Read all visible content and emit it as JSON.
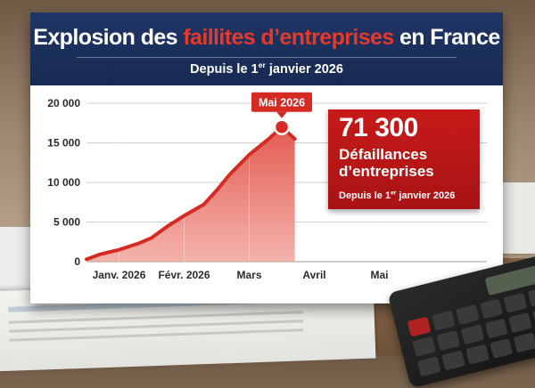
{
  "poster": {
    "title_part1": "Explosion des ",
    "title_highlight": "faillites d’entreprises",
    "title_part2": " en France",
    "subtitle_before": "Depuis le 1",
    "subtitle_sup": "er",
    "subtitle_after": " janvier 2026"
  },
  "callout": {
    "value": "71 300",
    "line1": "Défaillances",
    "line2": "d’entreprises",
    "sub_before": "Depuis le 1",
    "sub_sup": "er",
    "sub_after": " janvier 2026"
  },
  "colors": {
    "header_navy": "#1f3566",
    "accent_red": "#d42a22",
    "callout_red": "#c71a1a",
    "grid": "#cfcfcf"
  },
  "chart_data": {
    "type": "area",
    "title": "Explosion des faillites d’entreprises en France",
    "subtitle": "Depuis le 1er janvier 2026",
    "xlabel": "",
    "ylabel": "",
    "x_ticks": [
      "Janv. 2026",
      "Févr. 2026",
      "Mars",
      "Avril",
      "Mai"
    ],
    "ylim": [
      0,
      20000
    ],
    "y_ticks": [
      0,
      5000,
      10000,
      15000,
      20000
    ],
    "y_tick_labels": [
      "0",
      "5 000",
      "10 000",
      "15 000",
      "20 000"
    ],
    "grid": true,
    "series": [
      {
        "x": [
          0,
          0.2,
          0.5,
          0.8,
          1.0,
          1.25,
          1.5,
          1.8,
          2.0,
          2.2,
          2.5,
          2.8,
          3.0,
          3.2
        ],
        "values": [
          300,
          900,
          1500,
          2300,
          3000,
          4500,
          5800,
          7200,
          9000,
          11000,
          13500,
          15500,
          17000,
          15500
        ]
      }
    ],
    "annotations": [
      {
        "label": "Mai 2026",
        "x": 3.0,
        "y": 17000
      }
    ]
  }
}
